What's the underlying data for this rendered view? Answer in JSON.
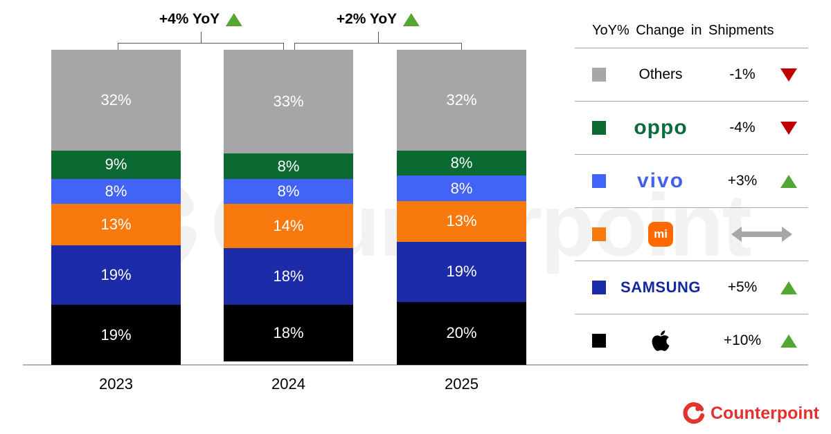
{
  "chart_data": {
    "type": "bar",
    "stacked": true,
    "categories": [
      "2023",
      "2024",
      "2025"
    ],
    "series": [
      {
        "name": "Others",
        "color": "#a6a6a6",
        "values": [
          32,
          33,
          32
        ]
      },
      {
        "name": "OPPO",
        "color": "#0a6a32",
        "values": [
          9,
          8,
          8
        ]
      },
      {
        "name": "vivo",
        "color": "#4164f6",
        "values": [
          8,
          8,
          8
        ]
      },
      {
        "name": "Xiaomi",
        "color": "#f87a0e",
        "values": [
          13,
          14,
          13
        ]
      },
      {
        "name": "Samsung",
        "color": "#1c2ba8",
        "values": [
          19,
          18,
          19
        ]
      },
      {
        "name": "Apple",
        "color": "#000000",
        "values": [
          19,
          18,
          20
        ]
      }
    ],
    "unit": "%",
    "ylim": [
      0,
      100
    ],
    "grid": false,
    "legend_position": "right",
    "annotations": [
      {
        "label": "+4% YoY",
        "trend": "up",
        "between": [
          "2023",
          "2024"
        ]
      },
      {
        "label": "+2% YoY",
        "trend": "up",
        "between": [
          "2024",
          "2025"
        ]
      }
    ]
  },
  "legend": {
    "title": "YoY% Change in Shipments",
    "rows": [
      {
        "brand": "Others",
        "logo_text": "Others",
        "change": "-1%",
        "trend": "down"
      },
      {
        "brand": "OPPO",
        "logo_text": "oppo",
        "change": "-4%",
        "trend": "down"
      },
      {
        "brand": "vivo",
        "logo_text": "vivo",
        "change": "+3%",
        "trend": "up"
      },
      {
        "brand": "Xiaomi",
        "logo_text": "mi",
        "change": "",
        "trend": "flat"
      },
      {
        "brand": "Samsung",
        "logo_text": "SAMSUNG",
        "change": "+5%",
        "trend": "up"
      },
      {
        "brand": "Apple",
        "logo_text": "",
        "change": "+10%",
        "trend": "up"
      }
    ]
  },
  "colors": {
    "trend_up": "#55a733",
    "trend_down": "#c00000",
    "trend_flat": "#a6a6a6",
    "oppo_green": "#0b6b3a",
    "vivo_blue": "#415ff5",
    "samsung_blue": "#1428a0",
    "xiaomi_orange": "#ff6900",
    "counterpoint_red": "#e3322e",
    "axis_line": "#b3b3b3"
  },
  "watermark": {
    "text": "Counterpoint"
  },
  "footer": {
    "logo_text": "Counterpoint"
  }
}
